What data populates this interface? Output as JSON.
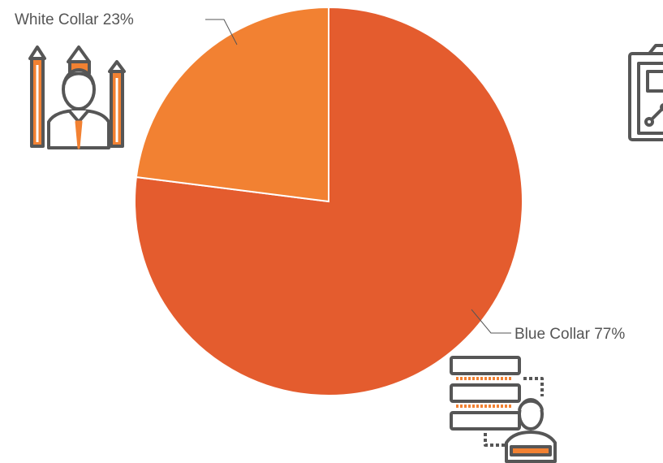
{
  "chart_data": {
    "type": "pie",
    "title": "",
    "slices": [
      {
        "label": "Blue Collar",
        "value": 77,
        "display": "Blue Collar 77%",
        "color": "#e45c2e"
      },
      {
        "label": "White Collar",
        "value": 23,
        "display": "White Collar 23%",
        "color": "#f28132"
      }
    ],
    "start_angle": "12 o'clock",
    "direction": "clockwise",
    "separator_color": "#ffffff",
    "icons": [
      "office-worker-icon",
      "clipboard-chart-icon",
      "server-worker-icon"
    ],
    "icon_colors": {
      "outline": "#565656",
      "accent": "#f28132"
    }
  }
}
